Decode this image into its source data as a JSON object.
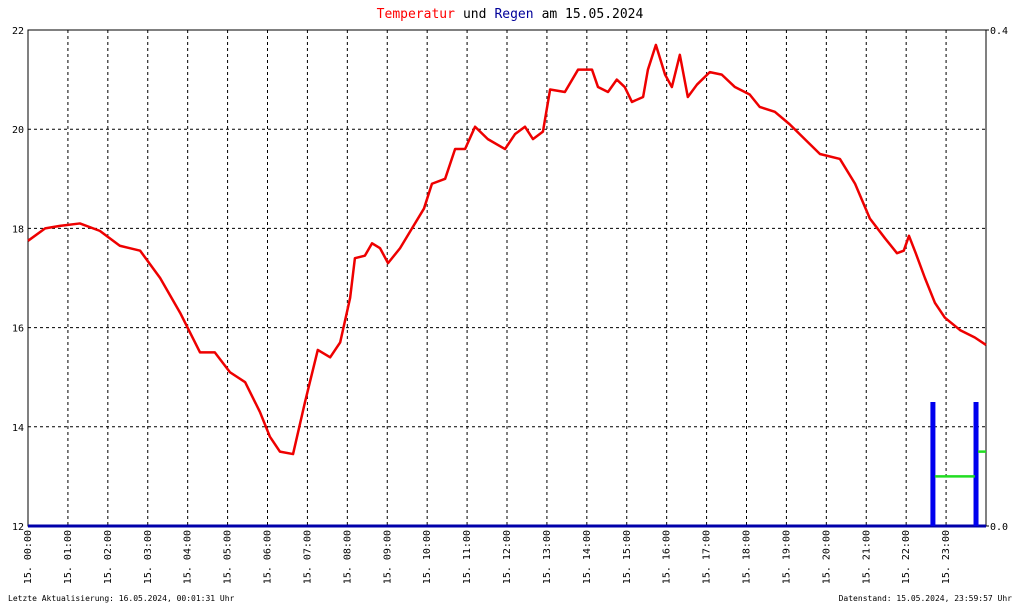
{
  "chart_data": {
    "type": "line",
    "title": [
      "Temperatur",
      "und",
      "Regen",
      "am 15.05.2024"
    ],
    "title_colors": [
      "#ff0000",
      "#000000",
      "#000099",
      "#000000"
    ],
    "footer_left": "Letzte Aktualisierung: 16.05.2024, 00:01:31 Uhr",
    "footer_right": "Datenstand: 15.05.2024, 23:59:57 Uhr",
    "xlim": [
      0,
      24
    ],
    "xticks": [
      {
        "value": 0,
        "label": "15. 00:00"
      },
      {
        "value": 1,
        "label": "15. 01:00"
      },
      {
        "value": 2,
        "label": "15. 02:00"
      },
      {
        "value": 3,
        "label": "15. 03:00"
      },
      {
        "value": 4,
        "label": "15. 04:00"
      },
      {
        "value": 5,
        "label": "15. 05:00"
      },
      {
        "value": 6,
        "label": "15. 06:00"
      },
      {
        "value": 7,
        "label": "15. 07:00"
      },
      {
        "value": 8,
        "label": "15. 08:00"
      },
      {
        "value": 9,
        "label": "15. 09:00"
      },
      {
        "value": 10,
        "label": "15. 10:00"
      },
      {
        "value": 11,
        "label": "15. 11:00"
      },
      {
        "value": 12,
        "label": "15. 12:00"
      },
      {
        "value": 13,
        "label": "15. 13:00"
      },
      {
        "value": 14,
        "label": "15. 14:00"
      },
      {
        "value": 15,
        "label": "15. 15:00"
      },
      {
        "value": 16,
        "label": "15. 16:00"
      },
      {
        "value": 17,
        "label": "15. 17:00"
      },
      {
        "value": 18,
        "label": "15. 18:00"
      },
      {
        "value": 19,
        "label": "15. 19:00"
      },
      {
        "value": 20,
        "label": "15. 20:00"
      },
      {
        "value": 21,
        "label": "15. 21:00"
      },
      {
        "value": 22,
        "label": "15. 22:00"
      },
      {
        "value": 23,
        "label": "15. 23:00"
      }
    ],
    "ylim": [
      12,
      22
    ],
    "yticks": [
      12,
      14,
      16,
      18,
      20,
      22
    ],
    "y2lim": [
      0,
      0.4
    ],
    "y2ticks": [
      {
        "value": 0,
        "label": "0.0"
      },
      0.4
    ],
    "grid": true,
    "series": [
      {
        "name": "Temperatur",
        "type": "line",
        "axis": "y",
        "color": "#ee0000",
        "x": [
          0,
          0.43,
          0.8,
          1.3,
          1.8,
          2.3,
          2.81,
          3.31,
          3.81,
          4.31,
          4.68,
          5.06,
          5.44,
          5.81,
          6.06,
          6.31,
          6.64,
          6.94,
          7.26,
          7.57,
          7.82,
          8.07,
          8.19,
          8.44,
          8.62,
          8.82,
          9.02,
          9.32,
          9.62,
          9.92,
          10.12,
          10.45,
          10.7,
          10.95,
          11.2,
          11.52,
          11.95,
          12.2,
          12.45,
          12.65,
          12.9,
          13.08,
          13.45,
          13.78,
          14.13,
          14.28,
          14.53,
          14.75,
          14.95,
          15.13,
          15.41,
          15.53,
          15.73,
          15.96,
          16.13,
          16.33,
          16.53,
          16.76,
          17.08,
          17.38,
          17.71,
          18.08,
          18.33,
          18.71,
          19.08,
          19.46,
          19.84,
          20.34,
          20.72,
          21.09,
          21.47,
          21.77,
          21.94,
          22.07,
          22.24,
          22.47,
          22.72,
          22.97,
          23.35,
          23.72,
          24.0
        ],
        "values": [
          17.75,
          18.0,
          18.05,
          18.1,
          17.95,
          17.65,
          17.55,
          17.0,
          16.3,
          15.5,
          15.5,
          15.1,
          14.9,
          14.3,
          13.8,
          13.5,
          13.45,
          14.5,
          15.55,
          15.4,
          15.7,
          16.6,
          17.4,
          17.45,
          17.7,
          17.6,
          17.3,
          17.6,
          18.0,
          18.4,
          18.9,
          19.0,
          19.6,
          19.6,
          20.05,
          19.8,
          19.6,
          19.9,
          20.05,
          19.8,
          19.95,
          20.8,
          20.75,
          21.2,
          21.2,
          20.85,
          20.75,
          21.0,
          20.85,
          20.55,
          20.65,
          21.2,
          21.7,
          21.1,
          20.85,
          21.5,
          20.65,
          20.9,
          21.15,
          21.1,
          20.85,
          20.7,
          20.45,
          20.35,
          20.1,
          19.8,
          19.5,
          19.4,
          18.9,
          18.2,
          17.8,
          17.5,
          17.55,
          17.85,
          17.5,
          17.0,
          16.5,
          16.2,
          15.95,
          15.8,
          15.65
        ]
      },
      {
        "name": "Regen",
        "type": "bar",
        "axis": "y2",
        "color": "#0000ee",
        "x": [
          22.67,
          23.75
        ],
        "values": [
          0.1,
          0.1
        ]
      },
      {
        "type": "line",
        "axis": "y2",
        "color": "#22dd22",
        "x": [
          22.72,
          23.72,
          23.75,
          23.8,
          24.0
        ],
        "values": [
          0.04,
          0.04,
          null,
          0.06,
          0.06
        ]
      }
    ]
  }
}
